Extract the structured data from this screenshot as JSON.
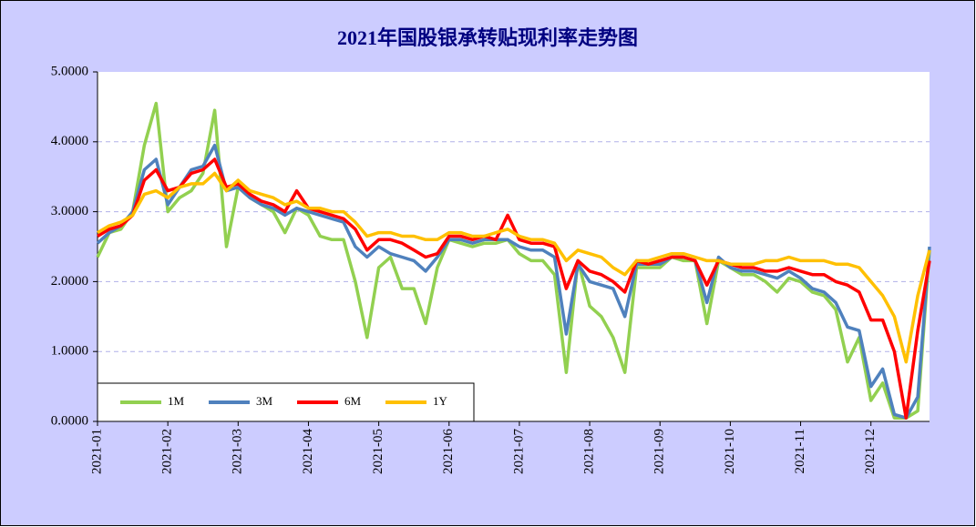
{
  "chart_data": {
    "type": "line",
    "title": "2021年国股银承转贴现利率走势图",
    "categories": [
      "2021-01",
      null,
      null,
      null,
      null,
      null,
      "2021-02",
      null,
      null,
      null,
      null,
      null,
      "2021-03",
      null,
      null,
      null,
      null,
      null,
      "2021-04",
      null,
      null,
      null,
      null,
      null,
      "2021-05",
      null,
      null,
      null,
      null,
      null,
      "2021-06",
      null,
      null,
      null,
      null,
      null,
      "2021-07",
      null,
      null,
      null,
      null,
      null,
      "2021-08",
      null,
      null,
      null,
      null,
      null,
      "2021-09",
      null,
      null,
      null,
      null,
      null,
      "2021-10",
      null,
      null,
      null,
      null,
      null,
      "2021-11",
      null,
      null,
      null,
      null,
      null,
      "2021-12",
      null,
      null,
      null,
      null,
      null
    ],
    "series": [
      {
        "name": "1M",
        "color": "#92d050",
        "values": [
          2.35,
          2.7,
          2.75,
          3.0,
          3.95,
          4.55,
          3.0,
          3.2,
          3.3,
          3.55,
          4.45,
          2.5,
          3.35,
          3.2,
          3.1,
          3.0,
          2.7,
          3.05,
          2.95,
          2.65,
          2.6,
          2.6,
          2.0,
          1.2,
          2.2,
          2.35,
          1.9,
          1.9,
          1.4,
          2.2,
          2.6,
          2.55,
          2.5,
          2.55,
          2.55,
          2.6,
          2.4,
          2.3,
          2.3,
          2.1,
          0.7,
          2.3,
          1.65,
          1.5,
          1.2,
          0.7,
          2.2,
          2.2,
          2.2,
          2.35,
          2.3,
          2.3,
          1.4,
          2.3,
          2.2,
          2.1,
          2.1,
          2.0,
          1.85,
          2.05,
          2.0,
          1.85,
          1.8,
          1.6,
          0.85,
          1.2,
          0.3,
          0.55,
          0.05,
          0.05,
          0.15,
          2.45
        ]
      },
      {
        "name": "3M",
        "color": "#4f81bd",
        "values": [
          2.55,
          2.7,
          2.8,
          3.0,
          3.6,
          3.75,
          3.1,
          3.35,
          3.6,
          3.65,
          3.95,
          3.3,
          3.35,
          3.2,
          3.1,
          3.05,
          2.95,
          3.05,
          3.0,
          2.95,
          2.9,
          2.85,
          2.5,
          2.35,
          2.5,
          2.4,
          2.35,
          2.3,
          2.15,
          2.35,
          2.6,
          2.6,
          2.55,
          2.6,
          2.6,
          2.6,
          2.5,
          2.45,
          2.45,
          2.35,
          1.25,
          2.25,
          2.0,
          1.95,
          1.9,
          1.5,
          2.25,
          2.25,
          2.25,
          2.35,
          2.35,
          2.3,
          1.7,
          2.35,
          2.2,
          2.15,
          2.15,
          2.1,
          2.05,
          2.15,
          2.05,
          1.9,
          1.85,
          1.7,
          1.35,
          1.3,
          0.5,
          0.75,
          0.1,
          0.05,
          0.35,
          2.5
        ]
      },
      {
        "name": "6M",
        "color": "#ff0000",
        "values": [
          2.65,
          2.75,
          2.8,
          2.95,
          3.45,
          3.6,
          3.3,
          3.35,
          3.55,
          3.6,
          3.75,
          3.35,
          3.4,
          3.25,
          3.15,
          3.1,
          3.0,
          3.3,
          3.05,
          3.0,
          2.95,
          2.9,
          2.75,
          2.45,
          2.6,
          2.6,
          2.55,
          2.45,
          2.35,
          2.4,
          2.65,
          2.65,
          2.6,
          2.65,
          2.6,
          2.95,
          2.6,
          2.55,
          2.55,
          2.5,
          1.9,
          2.3,
          2.15,
          2.1,
          2.0,
          1.85,
          2.3,
          2.25,
          2.3,
          2.35,
          2.35,
          2.3,
          1.95,
          2.3,
          2.25,
          2.2,
          2.2,
          2.15,
          2.15,
          2.2,
          2.15,
          2.1,
          2.1,
          2.0,
          1.95,
          1.85,
          1.45,
          1.45,
          1.0,
          0.05,
          1.3,
          2.3
        ]
      },
      {
        "name": "1Y",
        "color": "#ffc000",
        "values": [
          2.7,
          2.8,
          2.85,
          2.95,
          3.25,
          3.3,
          3.2,
          3.35,
          3.4,
          3.4,
          3.55,
          3.3,
          3.45,
          3.3,
          3.25,
          3.2,
          3.1,
          3.15,
          3.05,
          3.05,
          3.0,
          3.0,
          2.85,
          2.65,
          2.7,
          2.7,
          2.65,
          2.65,
          2.6,
          2.6,
          2.7,
          2.7,
          2.65,
          2.65,
          2.7,
          2.75,
          2.65,
          2.6,
          2.6,
          2.55,
          2.3,
          2.45,
          2.4,
          2.35,
          2.2,
          2.1,
          2.3,
          2.3,
          2.35,
          2.4,
          2.4,
          2.35,
          2.3,
          2.3,
          2.25,
          2.25,
          2.25,
          2.3,
          2.3,
          2.35,
          2.3,
          2.3,
          2.3,
          2.25,
          2.25,
          2.2,
          2.0,
          1.8,
          1.5,
          0.85,
          1.8,
          2.45
        ]
      }
    ],
    "ylim": [
      0,
      5
    ],
    "yticks": [
      {
        "value": 0,
        "label": "0.0000"
      },
      {
        "value": 1,
        "label": "1.0000"
      },
      {
        "value": 2,
        "label": "2.0000"
      },
      {
        "value": 3,
        "label": "3.0000"
      },
      {
        "value": 4,
        "label": "4.0000"
      },
      {
        "value": 5,
        "label": "5.0000"
      }
    ],
    "grid": true,
    "legend": "lower left"
  }
}
